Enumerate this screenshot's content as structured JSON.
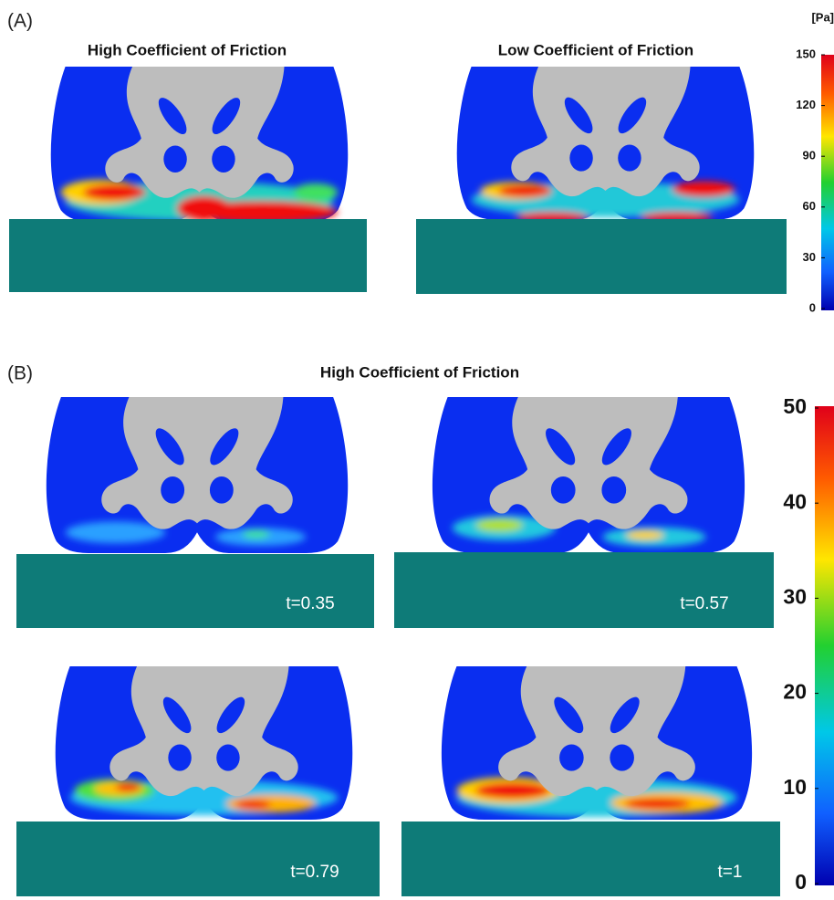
{
  "panel_a": {
    "label": "(A)",
    "left_title": "High Coefficient of Friction",
    "right_title": "Low Coefficient of Friction",
    "colorbar": {
      "unit": "[Pa]",
      "ticks": [
        150,
        120,
        90,
        60,
        30,
        0
      ]
    }
  },
  "panel_b": {
    "label": "(B)",
    "title": "High Coefficient of Friction",
    "snapshots": [
      {
        "time": "t=0.35"
      },
      {
        "time": "t=0.57"
      },
      {
        "time": "t=0.79"
      },
      {
        "time": "t=1"
      }
    ],
    "colorbar": {
      "ticks": [
        50,
        40,
        30,
        20,
        10,
        0
      ]
    }
  }
}
